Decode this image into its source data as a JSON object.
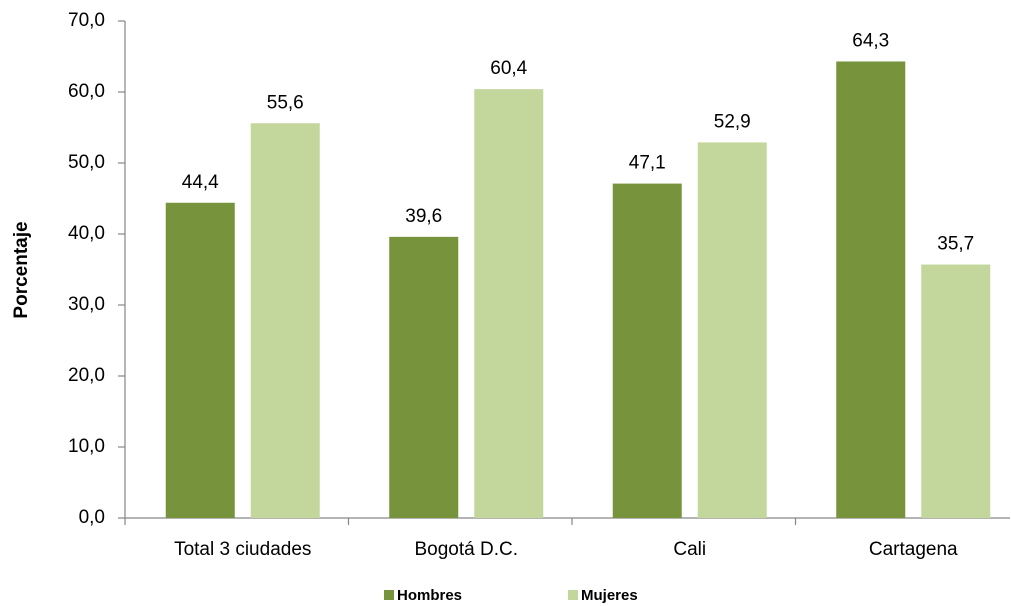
{
  "chart_data": {
    "type": "bar",
    "y_axis_label": "Porcentaje",
    "categories": [
      "Total 3 ciudades",
      "Bogotá D.C.",
      "Cali",
      "Cartagena"
    ],
    "series": [
      {
        "name": "Hombres",
        "color": "#77933c",
        "values": [
          44.4,
          39.6,
          47.1,
          64.3
        ],
        "value_labels": [
          "44,4",
          "39,6",
          "47,1",
          "64,3"
        ]
      },
      {
        "name": "Mujeres",
        "color": "#c3d69b",
        "values": [
          55.6,
          60.4,
          52.9,
          35.7
        ],
        "value_labels": [
          "55,6",
          "60,4",
          "52,9",
          "35,7"
        ]
      }
    ],
    "ylim": [
      0,
      70
    ],
    "yticks": [
      {
        "value": 0,
        "label": "0,0"
      },
      {
        "value": 10,
        "label": "10,0"
      },
      {
        "value": 20,
        "label": "20,0"
      },
      {
        "value": 30,
        "label": "30,0"
      },
      {
        "value": 40,
        "label": "40,0"
      },
      {
        "value": 50,
        "label": "50,0"
      },
      {
        "value": 60,
        "label": "60,0"
      },
      {
        "value": 70,
        "label": "70,0"
      }
    ],
    "legend": "bottom"
  }
}
